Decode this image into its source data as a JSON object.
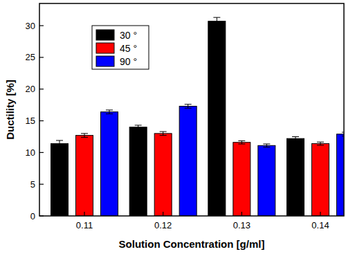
{
  "chart_data": {
    "type": "bar",
    "x_label": "Solution Concentration [g/ml]",
    "y_label": "Ductility [%]",
    "categories": [
      "0.11",
      "0.12",
      "0.13",
      "0.14"
    ],
    "series": [
      {
        "name": "30 °",
        "color": "#000000",
        "values": [
          11.4,
          14.0,
          30.7,
          12.2
        ],
        "errors": [
          0.5,
          0.3,
          0.6,
          0.3
        ]
      },
      {
        "name": "45 °",
        "color": "#ff0000",
        "values": [
          12.7,
          13.0,
          11.6,
          11.4
        ],
        "errors": [
          0.3,
          0.3,
          0.25,
          0.25
        ]
      },
      {
        "name": "90 °",
        "color": "#0000ff",
        "values": [
          16.4,
          17.3,
          11.1,
          12.9
        ],
        "errors": [
          0.3,
          0.3,
          0.25,
          0.3
        ]
      }
    ],
    "ylim": [
      0,
      33.5
    ],
    "yticks": [
      0,
      5,
      10,
      15,
      20,
      25,
      30
    ],
    "legend": "upper-left",
    "grid": false
  }
}
